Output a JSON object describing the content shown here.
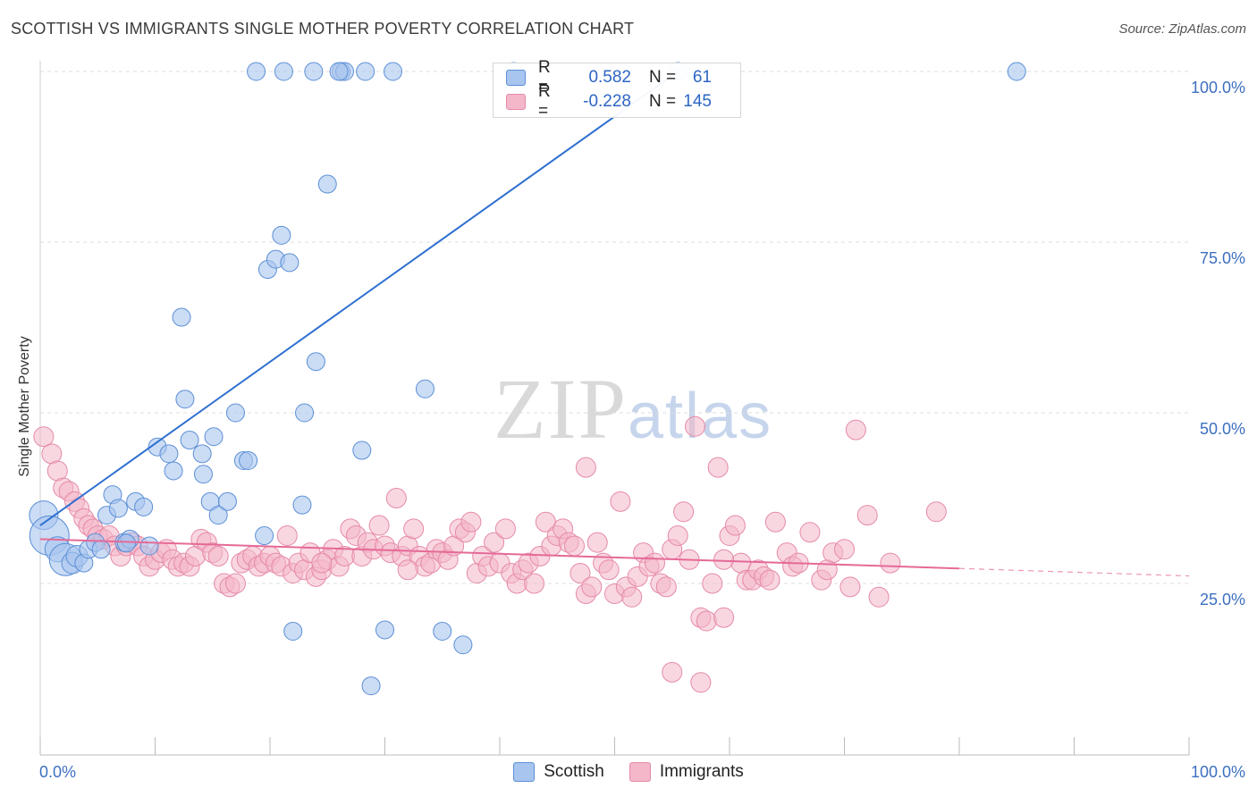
{
  "title": "SCOTTISH VS IMMIGRANTS SINGLE MOTHER POVERTY CORRELATION CHART",
  "source": "Source: ZipAtlas.com",
  "watermark": {
    "zip": "ZIP",
    "atlas": "atlas"
  },
  "legend_top": {
    "rows": [
      {
        "r_label": "R =",
        "r_value": "0.582",
        "n_label": "N =",
        "n_value": "61",
        "color": "#a8c5ef"
      },
      {
        "r_label": "R =",
        "r_value": "-0.228",
        "n_label": "N =",
        "n_value": "145",
        "color": "#f4b6c9"
      }
    ]
  },
  "legend_bottom": [
    {
      "label": "Scottish",
      "color": "#a8c5ef"
    },
    {
      "label": "Immigrants",
      "color": "#f4b6c9"
    }
  ],
  "colors": {
    "scottish_fill": "#a8c5ef",
    "scottish_stroke": "#5b8fd6",
    "scottish_line": "#2e6fd0",
    "immigrants_fill": "#f4b6c9",
    "immigrants_stroke": "#e58aa8",
    "immigrants_line": "#e56a97",
    "grid": "#dddddd",
    "tick_label": "#3d6fc0"
  },
  "chart_data": {
    "type": "scatter",
    "title": "SCOTTISH VS IMMIGRANTS SINGLE MOTHER POVERTY CORRELATION CHART",
    "xlabel": "",
    "ylabel": "Single Mother Poverty",
    "xlim": [
      0,
      100
    ],
    "ylim": [
      0,
      102
    ],
    "x_tick_labels": [
      "0.0%",
      "100.0%"
    ],
    "y_ticks": [
      25,
      50,
      75,
      100
    ],
    "y_tick_labels": [
      "25.0%",
      "50.0%",
      "75.0%",
      "100.0%"
    ],
    "grid": "horizontal dashed",
    "legend_position": "top-center and bottom",
    "series": [
      {
        "name": "Scottish",
        "r": 0.582,
        "n": 61,
        "trend": {
          "x": [
            0,
            55.5
          ],
          "y": [
            33.5,
            100
          ]
        },
        "points": [
          [
            0.3,
            35,
            16
          ],
          [
            0.8,
            32,
            22
          ],
          [
            1.5,
            30,
            14
          ],
          [
            2.2,
            28.5,
            18
          ],
          [
            2.8,
            28,
            12
          ],
          [
            3.2,
            29,
            12
          ],
          [
            3.8,
            28,
            10
          ],
          [
            4.2,
            30,
            10
          ],
          [
            4.8,
            31,
            10
          ],
          [
            5.3,
            30,
            10
          ],
          [
            5.8,
            35,
            10
          ],
          [
            6.3,
            38,
            10
          ],
          [
            6.8,
            36,
            10
          ],
          [
            7.3,
            31,
            10
          ],
          [
            8.3,
            37,
            10
          ],
          [
            9.5,
            30.5,
            10
          ],
          [
            7.8,
            31.5,
            10
          ],
          [
            9.0,
            36.2,
            10
          ],
          [
            7.5,
            30.9,
            10
          ],
          [
            10.2,
            45,
            10
          ],
          [
            11.2,
            44,
            10
          ],
          [
            11.6,
            41.5,
            10
          ],
          [
            13.0,
            46,
            10
          ],
          [
            12.3,
            64,
            10
          ],
          [
            12.6,
            52,
            10
          ],
          [
            14.1,
            44,
            10
          ],
          [
            14.2,
            41,
            10
          ],
          [
            14.8,
            37,
            10
          ],
          [
            15.1,
            46.5,
            10
          ],
          [
            15.5,
            35,
            10
          ],
          [
            16.3,
            37,
            10
          ],
          [
            17.0,
            50,
            10
          ],
          [
            17.7,
            43,
            10
          ],
          [
            18.1,
            43,
            10
          ],
          [
            19.5,
            32,
            10
          ],
          [
            19.8,
            71,
            10
          ],
          [
            20.5,
            72.5,
            10
          ],
          [
            21.7,
            72,
            10
          ],
          [
            21.0,
            76,
            10
          ],
          [
            23.0,
            50,
            10
          ],
          [
            22.0,
            18,
            10
          ],
          [
            22.8,
            36.5,
            10
          ],
          [
            24.0,
            57.5,
            10
          ],
          [
            25.0,
            83.5,
            10
          ],
          [
            28.0,
            44.5,
            10
          ],
          [
            28.8,
            10,
            10
          ],
          [
            30.0,
            18.2,
            10
          ],
          [
            33.5,
            53.5,
            10
          ],
          [
            35.0,
            18,
            10
          ],
          [
            36.8,
            16,
            10
          ],
          [
            26.2,
            100,
            10
          ],
          [
            26.5,
            100,
            10
          ],
          [
            28.3,
            100,
            10
          ],
          [
            26.0,
            100,
            10
          ],
          [
            18.8,
            100,
            10
          ],
          [
            21.2,
            100,
            10
          ],
          [
            23.8,
            100,
            10
          ],
          [
            30.7,
            100,
            10
          ],
          [
            41.2,
            100,
            10
          ],
          [
            55.5,
            100,
            10
          ],
          [
            85.0,
            100,
            10
          ]
        ]
      },
      {
        "name": "Immigrants",
        "r": -0.228,
        "n": 145,
        "trend": {
          "x": [
            0,
            80
          ],
          "y": [
            31.5,
            27.2
          ]
        },
        "trend_extension": {
          "x": [
            80,
            100
          ],
          "y": [
            27.2,
            26.1
          ]
        },
        "points": [
          [
            0.3,
            46.5,
            11
          ],
          [
            1.0,
            44,
            11
          ],
          [
            1.5,
            41.5,
            11
          ],
          [
            2.0,
            39,
            11
          ],
          [
            2.5,
            38.5,
            11
          ],
          [
            3.0,
            37,
            11
          ],
          [
            3.4,
            36,
            11
          ],
          [
            3.8,
            34.5,
            11
          ],
          [
            4.2,
            33.5,
            11
          ],
          [
            4.6,
            33,
            11
          ],
          [
            5.0,
            32,
            11
          ],
          [
            5.5,
            31.5,
            11
          ],
          [
            6.0,
            32,
            11
          ],
          [
            6.5,
            30.5,
            11
          ],
          [
            7.0,
            29,
            11
          ],
          [
            7.5,
            30.5,
            11
          ],
          [
            8.0,
            31,
            11
          ],
          [
            8.5,
            30.5,
            11
          ],
          [
            9.0,
            29,
            11
          ],
          [
            9.5,
            27.5,
            11
          ],
          [
            10.0,
            28.5,
            11
          ],
          [
            10.5,
            29.5,
            11
          ],
          [
            11.0,
            30,
            11
          ],
          [
            11.5,
            28.5,
            11
          ],
          [
            12.0,
            27.5,
            11
          ],
          [
            12.5,
            28,
            11
          ],
          [
            13.0,
            27.5,
            11
          ],
          [
            13.5,
            29,
            11
          ],
          [
            14.0,
            31.5,
            11
          ],
          [
            14.5,
            31,
            11
          ],
          [
            15.0,
            29.5,
            11
          ],
          [
            15.5,
            29,
            11
          ],
          [
            16.0,
            25,
            11
          ],
          [
            16.5,
            24.5,
            11
          ],
          [
            17.0,
            25,
            11
          ],
          [
            17.5,
            28,
            11
          ],
          [
            18.0,
            28.5,
            11
          ],
          [
            18.5,
            29,
            11
          ],
          [
            19.0,
            27.5,
            11
          ],
          [
            19.5,
            28,
            11
          ],
          [
            20.0,
            29,
            11
          ],
          [
            20.5,
            28,
            11
          ],
          [
            21.0,
            27.5,
            11
          ],
          [
            21.5,
            32,
            11
          ],
          [
            22.0,
            26.5,
            11
          ],
          [
            22.5,
            28,
            11
          ],
          [
            23.0,
            27,
            11
          ],
          [
            23.5,
            29.5,
            11
          ],
          [
            24.0,
            26,
            11
          ],
          [
            24.5,
            27,
            11
          ],
          [
            25.0,
            28.5,
            11
          ],
          [
            25.5,
            30,
            11
          ],
          [
            26.0,
            27.5,
            11
          ],
          [
            26.5,
            29,
            11
          ],
          [
            27.0,
            33,
            11
          ],
          [
            27.5,
            32,
            11
          ],
          [
            28.0,
            29,
            11
          ],
          [
            28.5,
            31,
            11
          ],
          [
            29.0,
            30,
            11
          ],
          [
            29.5,
            33.5,
            11
          ],
          [
            30.0,
            30.5,
            11
          ],
          [
            30.5,
            29.5,
            11
          ],
          [
            31.0,
            37.5,
            11
          ],
          [
            31.5,
            29,
            11
          ],
          [
            32.0,
            30.5,
            11
          ],
          [
            32.5,
            33,
            11
          ],
          [
            33.0,
            29,
            11
          ],
          [
            33.5,
            27.5,
            11
          ],
          [
            34.0,
            28,
            11
          ],
          [
            34.5,
            30,
            11
          ],
          [
            35.0,
            29.5,
            11
          ],
          [
            35.5,
            28.5,
            11
          ],
          [
            36.0,
            30.5,
            11
          ],
          [
            36.5,
            33,
            11
          ],
          [
            37.0,
            32.5,
            11
          ],
          [
            37.5,
            34,
            11
          ],
          [
            38.0,
            26.5,
            11
          ],
          [
            38.5,
            29,
            11
          ],
          [
            39.0,
            27.5,
            11
          ],
          [
            39.5,
            31,
            11
          ],
          [
            40.0,
            28,
            11
          ],
          [
            40.5,
            33,
            11
          ],
          [
            41.0,
            26.5,
            11
          ],
          [
            41.5,
            25,
            11
          ],
          [
            42.0,
            27,
            11
          ],
          [
            42.5,
            28,
            11
          ],
          [
            43.0,
            25,
            11
          ],
          [
            43.5,
            29,
            11
          ],
          [
            44.0,
            34,
            11
          ],
          [
            44.5,
            30.5,
            11
          ],
          [
            45.0,
            32,
            11
          ],
          [
            45.5,
            33,
            11
          ],
          [
            46.0,
            31,
            11
          ],
          [
            46.5,
            30.5,
            11
          ],
          [
            47.0,
            26.5,
            11
          ],
          [
            47.5,
            23.5,
            11
          ],
          [
            48.0,
            24.5,
            11
          ],
          [
            48.5,
            31,
            11
          ],
          [
            49.0,
            28,
            11
          ],
          [
            49.5,
            27,
            11
          ],
          [
            50.0,
            23.5,
            11
          ],
          [
            50.5,
            37,
            11
          ],
          [
            51.0,
            24.5,
            11
          ],
          [
            51.5,
            23,
            11
          ],
          [
            52.0,
            26,
            11
          ],
          [
            52.5,
            29.5,
            11
          ],
          [
            53.0,
            27.5,
            11
          ],
          [
            53.5,
            28,
            11
          ],
          [
            54.0,
            25,
            11
          ],
          [
            54.5,
            24.5,
            11
          ],
          [
            55.0,
            30,
            11
          ],
          [
            55.5,
            32,
            11
          ],
          [
            56.0,
            35.5,
            11
          ],
          [
            56.5,
            28.5,
            11
          ],
          [
            57.0,
            48,
            11
          ],
          [
            57.5,
            20,
            11
          ],
          [
            58.0,
            19.5,
            11
          ],
          [
            58.5,
            25,
            11
          ],
          [
            59.0,
            42,
            11
          ],
          [
            59.5,
            20,
            11
          ],
          [
            60.0,
            32,
            11
          ],
          [
            60.5,
            33.5,
            11
          ],
          [
            61.0,
            28,
            11
          ],
          [
            61.5,
            25.5,
            11
          ],
          [
            62.0,
            25.5,
            11
          ],
          [
            62.5,
            27,
            11
          ],
          [
            63.0,
            26,
            11
          ],
          [
            63.5,
            25.5,
            11
          ],
          [
            64.0,
            34,
            11
          ],
          [
            65.0,
            29.5,
            11
          ],
          [
            65.5,
            27.5,
            11
          ],
          [
            66.0,
            28,
            11
          ],
          [
            67.0,
            32.5,
            11
          ],
          [
            68.0,
            25.5,
            11
          ],
          [
            68.5,
            27,
            11
          ],
          [
            69.0,
            29.5,
            11
          ],
          [
            70.0,
            30,
            11
          ],
          [
            70.5,
            24.5,
            11
          ],
          [
            71.0,
            47.5,
            11
          ],
          [
            72.0,
            35,
            11
          ],
          [
            73.0,
            23,
            11
          ],
          [
            74.0,
            28,
            11
          ],
          [
            78.0,
            35.5,
            11
          ],
          [
            55.0,
            12,
            11
          ],
          [
            57.5,
            10.5,
            11
          ],
          [
            47.5,
            42,
            11
          ],
          [
            32.0,
            27,
            11
          ],
          [
            24.5,
            28,
            11
          ],
          [
            59.5,
            28.5,
            11
          ]
        ]
      }
    ]
  }
}
